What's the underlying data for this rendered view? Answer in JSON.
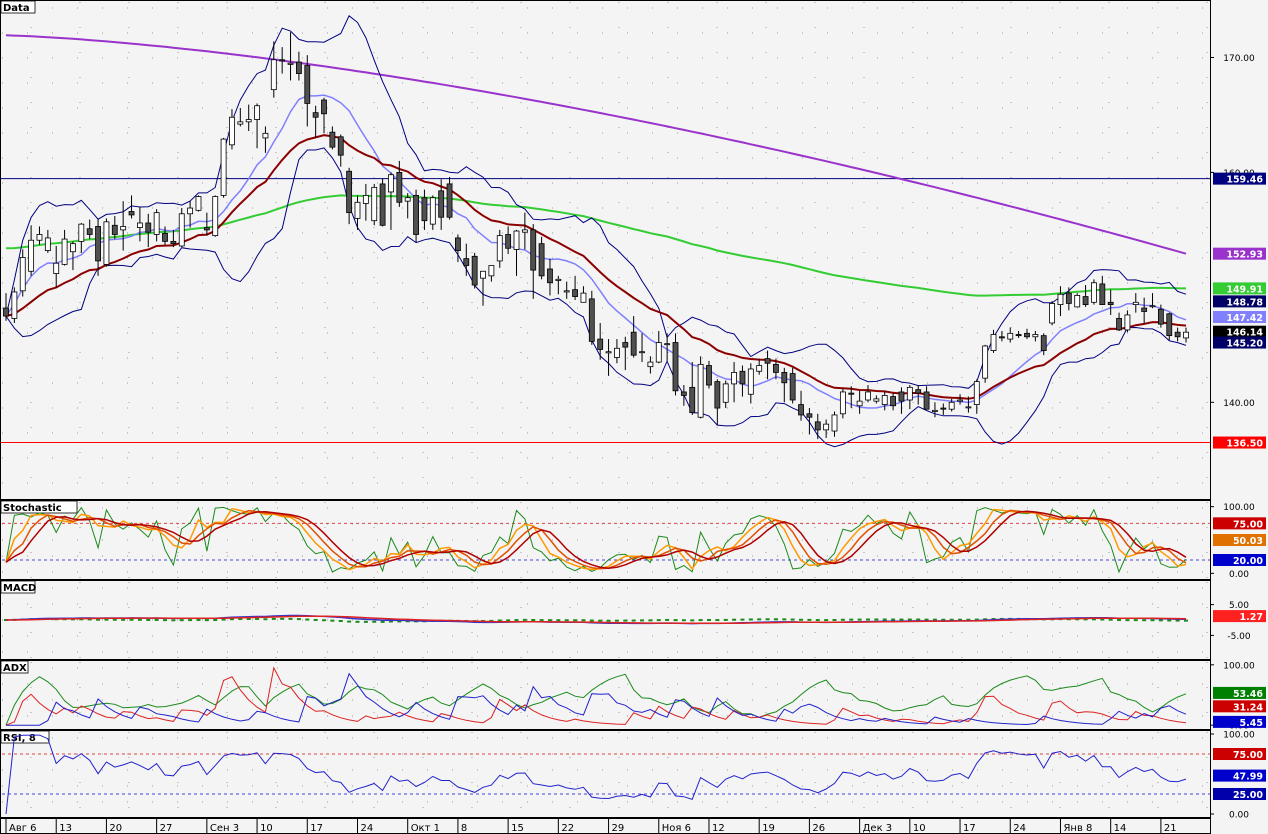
{
  "panels": {
    "price": {
      "title": "Data"
    },
    "stoch": {
      "title": "Stochastic"
    },
    "macd": {
      "title": "MACD"
    },
    "adx": {
      "title": "ADX"
    },
    "rsi": {
      "title": "RSI, 8"
    }
  },
  "colors": {
    "background": "#f4f4f4",
    "grid": "#9a9a9a",
    "candle_up": "#ffffff",
    "candle_down": "#505050",
    "ma_short": "#8080ff",
    "ma_mid": "#8b0000",
    "ma_long_green": "#33cc33",
    "ma_long_purple": "#9933cc",
    "bollinger": "#000080",
    "resistance": "#000080",
    "support": "#ff0000"
  },
  "chart_data": [
    {
      "panel": "price",
      "type": "candlestick",
      "title": "Data",
      "ylim": [
        131.5,
        175.0
      ],
      "y_ticks": [
        {
          "v": 170,
          "label": "170.00"
        },
        {
          "v": 160,
          "label": "160.00"
        },
        {
          "v": 140,
          "label": "140.00"
        }
      ],
      "x_ticks": [
        "Авг 6",
        "13",
        "20",
        "27",
        "Сен 3",
        "10",
        "17",
        "24",
        "Окт 1",
        "8",
        "15",
        "22",
        "29",
        "Ноя 6",
        "12",
        "19",
        "26",
        "Дек 3",
        "10",
        "17",
        "24",
        "Янв 8",
        "14",
        "21"
      ],
      "horizontal_lines": [
        {
          "name": "resistance-line",
          "value": 159.46,
          "label": "159.46",
          "color": "#000080"
        },
        {
          "name": "support-line",
          "value": 136.5,
          "label": "136.50",
          "color": "#ff0000"
        }
      ],
      "value_tags": [
        {
          "label": "152.93",
          "value": 152.93,
          "color": "#9933cc"
        },
        {
          "label": "149.91",
          "value": 149.91,
          "color": "#33cc33"
        },
        {
          "label": "148.78",
          "value": 148.78,
          "color": "#000066"
        },
        {
          "label": "147.42",
          "value": 147.42,
          "color": "#8080ff"
        },
        {
          "label": "146.14",
          "value": 146.14,
          "color": "#000000"
        },
        {
          "label": "145.20",
          "value": 145.2,
          "color": "#000066"
        }
      ],
      "candles": [
        [
          148.2,
          149.5,
          147.1,
          147.5
        ],
        [
          147.3,
          150.0,
          146.9,
          149.6
        ],
        [
          149.7,
          153.3,
          149.2,
          152.6
        ],
        [
          151.4,
          155.4,
          151.0,
          154.1
        ],
        [
          154.1,
          155.3,
          153.7,
          154.6
        ],
        [
          153.2,
          155.0,
          153.0,
          154.3
        ],
        [
          151.2,
          153.6,
          150.0,
          152.1
        ],
        [
          152.0,
          155.0,
          151.9,
          154.2
        ],
        [
          153.1,
          154.0,
          151.5,
          153.8
        ],
        [
          154.0,
          155.6,
          153.0,
          155.5
        ],
        [
          155.1,
          155.9,
          154.2,
          154.6
        ],
        [
          155.3,
          156.0,
          151.0,
          152.3
        ],
        [
          152.0,
          156.0,
          151.8,
          155.7
        ],
        [
          155.4,
          156.2,
          154.2,
          154.6
        ],
        [
          155.0,
          157.5,
          153.2,
          155.3
        ],
        [
          156.6,
          158.0,
          156.0,
          156.3
        ],
        [
          155.2,
          157.0,
          154.0,
          155.6
        ],
        [
          155.6,
          156.4,
          153.5,
          154.8
        ],
        [
          154.6,
          156.8,
          154.0,
          156.5
        ],
        [
          154.7,
          155.3,
          153.7,
          154.0
        ],
        [
          154.0,
          155.0,
          153.5,
          153.8
        ],
        [
          153.6,
          156.9,
          153.5,
          156.4
        ],
        [
          156.4,
          157.5,
          155.2,
          156.9
        ],
        [
          156.7,
          158.0,
          156.6,
          157.9
        ],
        [
          155.2,
          156.5,
          154.5,
          155.0
        ],
        [
          154.5,
          158.0,
          154.4,
          157.9
        ],
        [
          158.0,
          163.0,
          157.8,
          162.9
        ],
        [
          162.4,
          165.5,
          162.0,
          164.8
        ],
        [
          164.2,
          165.6,
          164.0,
          164.4
        ],
        [
          164.4,
          165.9,
          163.6,
          164.6
        ],
        [
          164.6,
          166.0,
          162.1,
          165.8
        ],
        [
          163.0,
          164.0,
          161.7,
          163.4
        ],
        [
          167.2,
          171.4,
          166.5,
          169.8
        ],
        [
          169.8,
          170.9,
          168.6,
          169.7
        ],
        [
          169.4,
          172.2,
          168.0,
          169.5
        ],
        [
          169.6,
          170.5,
          168.0,
          168.6
        ],
        [
          169.3,
          170.2,
          164.0,
          166.0
        ],
        [
          165.2,
          165.8,
          163.0,
          164.8
        ],
        [
          166.3,
          166.5,
          163.4,
          165.1
        ],
        [
          163.5,
          164.0,
          162.0,
          162.2
        ],
        [
          163.1,
          163.3,
          160.5,
          161.5
        ],
        [
          160.1,
          160.4,
          155.5,
          156.5
        ],
        [
          156.0,
          158.0,
          155.0,
          157.4
        ],
        [
          157.3,
          159.0,
          155.8,
          158.0
        ],
        [
          155.8,
          159.0,
          155.4,
          158.7
        ],
        [
          159.0,
          159.5,
          155.3,
          155.4
        ],
        [
          158.3,
          160.0,
          155.0,
          159.8
        ],
        [
          160.0,
          161.0,
          157.0,
          157.4
        ],
        [
          157.5,
          158.2,
          156.0,
          157.8
        ],
        [
          158.0,
          158.5,
          153.9,
          154.6
        ],
        [
          157.8,
          158.5,
          155.0,
          155.8
        ],
        [
          155.5,
          158.0,
          155.0,
          157.8
        ],
        [
          158.4,
          159.4,
          155.0,
          156.1
        ],
        [
          159.0,
          159.6,
          155.9,
          156.1
        ],
        [
          154.3,
          154.6,
          152.2,
          153.2
        ],
        [
          152.5,
          153.8,
          151.0,
          151.9
        ],
        [
          152.7,
          153.0,
          149.9,
          150.2
        ],
        [
          150.8,
          151.0,
          148.4,
          151.4
        ],
        [
          151.0,
          151.9,
          150.5,
          151.9
        ],
        [
          152.3,
          155.0,
          151.7,
          154.5
        ],
        [
          154.6,
          155.3,
          152.9,
          153.4
        ],
        [
          153.3,
          155.0,
          151.0,
          154.9
        ],
        [
          154.8,
          156.5,
          153.3,
          155.0
        ],
        [
          155.0,
          155.5,
          149.0,
          151.5
        ],
        [
          153.8,
          154.4,
          150.7,
          151.0
        ],
        [
          151.6,
          152.5,
          149.3,
          150.4
        ],
        [
          150.6,
          151.0,
          149.4,
          150.7
        ],
        [
          149.6,
          150.5,
          149.0,
          149.7
        ],
        [
          149.8,
          151.0,
          148.9,
          149.2
        ],
        [
          148.7,
          150.1,
          148.7,
          149.5
        ],
        [
          149.0,
          149.7,
          145.0,
          145.3
        ],
        [
          145.5,
          146.9,
          143.7,
          144.6
        ],
        [
          144.3,
          145.5,
          142.3,
          144.4
        ],
        [
          143.9,
          145.5,
          143.4,
          144.7
        ],
        [
          145.2,
          145.7,
          142.8,
          144.8
        ],
        [
          146.1,
          147.5,
          143.9,
          144.1
        ],
        [
          144.4,
          146.0,
          143.5,
          144.4
        ],
        [
          143.1,
          144.0,
          142.5,
          143.5
        ],
        [
          143.5,
          146.2,
          143.4,
          145.2
        ],
        [
          145.1,
          146.0,
          143.6,
          145.1
        ],
        [
          145.2,
          146.0,
          140.6,
          141.0
        ],
        [
          140.9,
          141.5,
          139.7,
          140.6
        ],
        [
          141.3,
          143.5,
          138.9,
          139.1
        ],
        [
          138.7,
          144.0,
          138.6,
          143.3
        ],
        [
          143.2,
          143.6,
          141.2,
          141.5
        ],
        [
          141.8,
          142.0,
          138.0,
          139.5
        ],
        [
          140.0,
          141.9,
          139.5,
          141.6
        ],
        [
          141.6,
          143.5,
          140.0,
          142.6
        ],
        [
          142.7,
          143.2,
          140.5,
          141.6
        ],
        [
          140.7,
          143.4,
          139.9,
          142.9
        ],
        [
          142.7,
          143.8,
          142.4,
          143.2
        ],
        [
          143.8,
          144.5,
          142.0,
          143.4
        ],
        [
          143.3,
          143.8,
          142.0,
          142.6
        ],
        [
          142.6,
          143.0,
          140.0,
          141.7
        ],
        [
          142.5,
          143.0,
          139.9,
          140.2
        ],
        [
          139.8,
          141.0,
          138.4,
          138.9
        ],
        [
          139.0,
          139.5,
          137.2,
          138.7
        ],
        [
          138.3,
          139.0,
          136.8,
          137.6
        ],
        [
          137.6,
          138.5,
          136.9,
          138.1
        ],
        [
          137.5,
          139.2,
          137.0,
          138.9
        ],
        [
          139.0,
          141.2,
          138.6,
          140.9
        ],
        [
          140.8,
          141.4,
          139.5,
          140.7
        ],
        [
          139.7,
          141.0,
          139.0,
          140.1
        ],
        [
          140.2,
          141.5,
          140.0,
          140.9
        ],
        [
          140.1,
          140.6,
          139.9,
          140.3
        ],
        [
          139.8,
          141.0,
          139.3,
          140.6
        ],
        [
          140.5,
          140.8,
          139.3,
          139.7
        ],
        [
          140.9,
          141.3,
          139.0,
          140.1
        ],
        [
          140.2,
          141.5,
          139.4,
          141.3
        ],
        [
          141.1,
          141.5,
          139.8,
          140.8
        ],
        [
          140.9,
          141.4,
          139.8,
          139.4
        ],
        [
          139.2,
          140.0,
          138.7,
          139.3
        ],
        [
          139.5,
          139.9,
          138.9,
          139.4
        ],
        [
          139.4,
          140.3,
          139.2,
          140.0
        ],
        [
          140.1,
          140.7,
          139.8,
          140.2
        ],
        [
          139.6,
          140.5,
          139.1,
          139.6
        ],
        [
          139.8,
          142.0,
          139.0,
          141.8
        ],
        [
          142.1,
          145.0,
          141.7,
          144.9
        ],
        [
          144.5,
          146.3,
          144.3,
          145.9
        ],
        [
          145.7,
          146.2,
          145.3,
          145.6
        ],
        [
          145.5,
          146.5,
          145.2,
          146.0
        ],
        [
          145.9,
          146.2,
          145.6,
          145.8
        ],
        [
          146.0,
          146.4,
          145.5,
          145.7
        ],
        [
          145.7,
          146.2,
          145.3,
          145.9
        ],
        [
          145.8,
          146.0,
          144.1,
          144.5
        ],
        [
          146.9,
          148.8,
          146.7,
          148.6
        ],
        [
          148.5,
          150.1,
          147.5,
          149.4
        ],
        [
          149.5,
          150.0,
          148.0,
          148.6
        ],
        [
          148.3,
          149.5,
          148.3,
          149.3
        ],
        [
          149.2,
          150.2,
          148.3,
          148.5
        ],
        [
          148.7,
          150.7,
          148.5,
          150.4
        ],
        [
          150.3,
          151.0,
          148.5,
          148.5
        ],
        [
          148.7,
          149.8,
          147.6,
          148.5
        ],
        [
          147.3,
          147.8,
          146.2,
          146.3
        ],
        [
          146.3,
          148.0,
          146.1,
          147.6
        ],
        [
          148.5,
          149.5,
          147.8,
          148.7
        ],
        [
          148.2,
          149.1,
          146.8,
          147.9
        ],
        [
          148.4,
          149.5,
          148.2,
          148.4
        ],
        [
          148.1,
          148.5,
          146.5,
          146.8
        ],
        [
          147.7,
          147.8,
          145.4,
          145.8
        ],
        [
          146.1,
          146.5,
          145.3,
          145.7
        ],
        [
          145.6,
          146.5,
          145.2,
          146.1
        ]
      ]
    },
    {
      "panel": "stoch",
      "type": "line",
      "title": "Stochastic",
      "ylim": [
        -10,
        110
      ],
      "y_ticks": [
        {
          "v": 100,
          "label": "100.00"
        },
        {
          "v": 0,
          "label": "0.00"
        }
      ],
      "horizontal_lines": [
        {
          "value": 75,
          "color": "#d44"
        },
        {
          "value": 20,
          "color": "#44d"
        }
      ],
      "value_tags": [
        {
          "label": "75.00",
          "value": 75,
          "color": "#cc0000"
        },
        {
          "label": "50.03",
          "value": 50.03,
          "color": "#e07000"
        },
        {
          "label": "20.00",
          "value": 20,
          "color": "#0000cc"
        }
      ]
    },
    {
      "panel": "macd",
      "type": "line",
      "title": "MACD",
      "ylim": [
        -13,
        13
      ],
      "y_ticks": [
        {
          "v": 5,
          "label": "5.00"
        },
        {
          "v": -5,
          "label": "-5.00"
        }
      ],
      "value_tags": [
        {
          "label": "1.27",
          "value": 1.27,
          "color": "#ff2020"
        }
      ]
    },
    {
      "panel": "adx",
      "type": "line",
      "title": "ADX",
      "ylim": [
        -8,
        108
      ],
      "y_ticks": [
        {
          "v": 100,
          "label": "100.00"
        },
        {
          "v": 0,
          "label": "0.00"
        }
      ],
      "value_tags": [
        {
          "label": "53.46",
          "value": 53.46,
          "color": "#008000"
        },
        {
          "label": "31.24",
          "value": 31.24,
          "color": "#cc0000"
        },
        {
          "label": "5.45",
          "value": 5.45,
          "color": "#0000cc"
        }
      ]
    },
    {
      "panel": "rsi",
      "type": "line",
      "title": "RSI, 8",
      "ylim": [
        -5,
        105
      ],
      "y_ticks": [
        {
          "v": 100,
          "label": "100.00"
        },
        {
          "v": 0,
          "label": "0.00"
        }
      ],
      "horizontal_lines": [
        {
          "value": 75,
          "color": "#d44"
        },
        {
          "value": 25,
          "color": "#44d"
        }
      ],
      "value_tags": [
        {
          "label": "75.00",
          "value": 75,
          "color": "#cc0000"
        },
        {
          "label": "47.99",
          "value": 47.99,
          "color": "#0000cc"
        },
        {
          "label": "25.00",
          "value": 25,
          "color": "#0000aa"
        }
      ]
    }
  ]
}
